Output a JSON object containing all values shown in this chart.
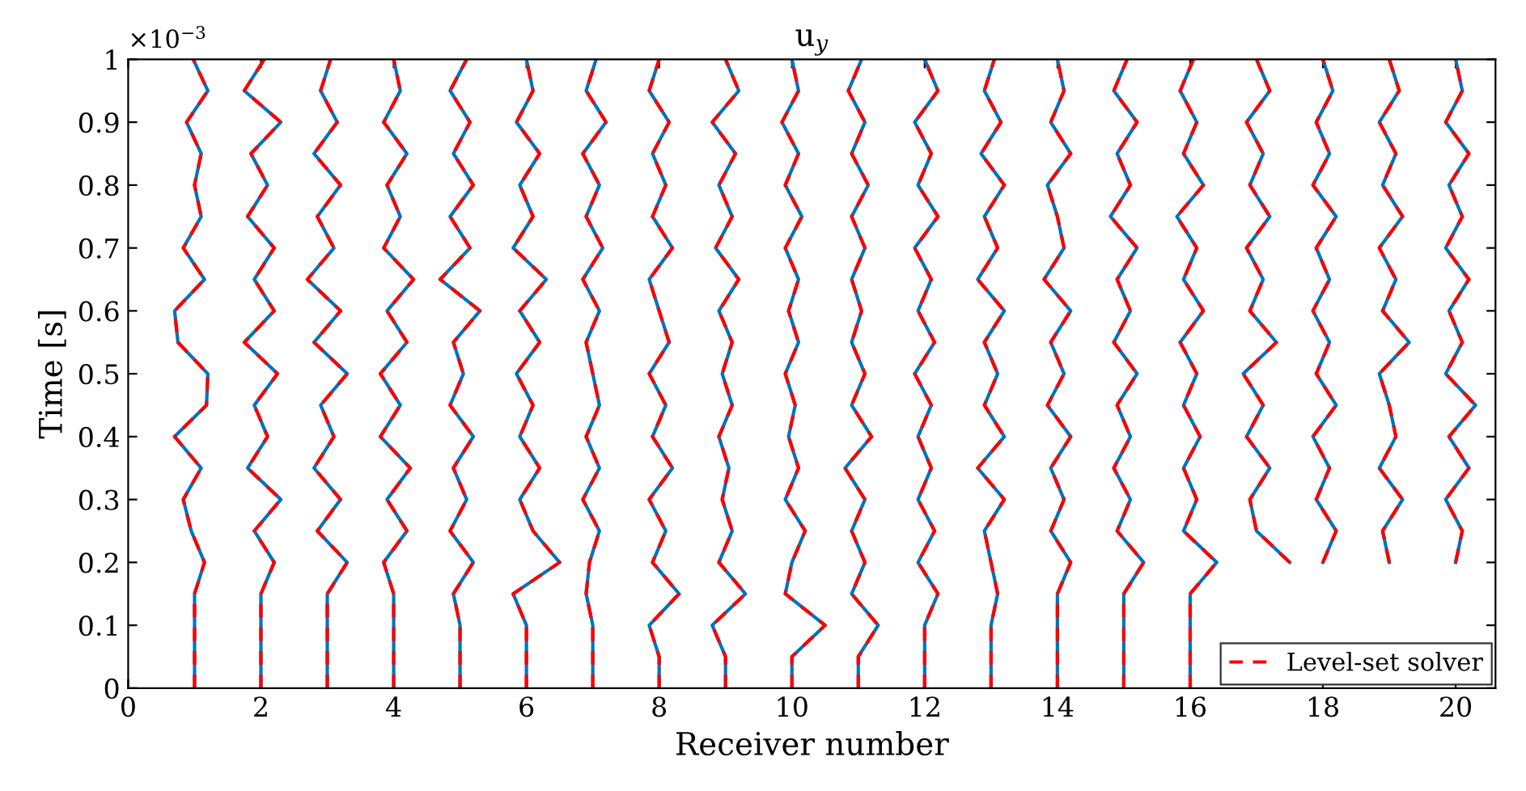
{
  "chart_data": {
    "type": "line",
    "title": "u$_{y}$",
    "xlabel": "Receiver number",
    "ylabel": "Time [s]",
    "annotations": [
      "×10$^{−3}$"
    ],
    "xlim": [
      0,
      20.6
    ],
    "ylim": [
      0,
      1
    ],
    "xticks": [
      0,
      2,
      4,
      6,
      8,
      10,
      12,
      14,
      16,
      18,
      20
    ],
    "yticks": [
      0,
      0.1,
      0.2,
      0.3,
      0.4,
      0.5,
      0.6,
      0.7,
      0.8,
      0.9,
      1
    ],
    "grid": false,
    "legend": "bottom right",
    "series": [
      {
        "color": "#0072bd",
        "line_style": "solid",
        "x": [
          1,
          1,
          1,
          1,
          1.15,
          0.95,
          0.83,
          1.1,
          0.7,
          1.18,
          1.2,
          0.75,
          0.7,
          1.15,
          0.83,
          1.1,
          1.0,
          1.1,
          0.88,
          1.2,
          0.98
        ],
        "values": [
          0,
          0.05,
          0.1,
          0.15,
          0.2,
          0.25,
          0.3,
          0.35,
          0.4,
          0.45,
          0.5,
          0.55,
          0.6,
          0.65,
          0.7,
          0.75,
          0.8,
          0.85,
          0.9,
          0.95,
          1
        ]
      },
      {
        "color": "#0072bd",
        "line_style": "solid",
        "x": [
          2,
          2,
          2,
          2,
          2.2,
          1.9,
          2.3,
          1.8,
          2.1,
          1.9,
          2.25,
          1.75,
          2.2,
          1.9,
          2.2,
          1.8,
          2.1,
          1.85,
          2.3,
          1.75,
          2.05
        ],
        "values": [
          0,
          0.05,
          0.1,
          0.15,
          0.2,
          0.25,
          0.3,
          0.35,
          0.4,
          0.45,
          0.5,
          0.55,
          0.6,
          0.65,
          0.7,
          0.75,
          0.8,
          0.85,
          0.9,
          0.95,
          1
        ]
      },
      {
        "color": "#0072bd",
        "line_style": "solid",
        "x": [
          3,
          3,
          3,
          3,
          3.3,
          2.85,
          3.2,
          2.8,
          3.1,
          2.9,
          3.3,
          2.8,
          3.2,
          2.7,
          3.1,
          2.85,
          3.2,
          2.8,
          3.15,
          2.9,
          3.05
        ],
        "values": [
          0,
          0.05,
          0.1,
          0.15,
          0.2,
          0.25,
          0.3,
          0.35,
          0.4,
          0.45,
          0.5,
          0.55,
          0.6,
          0.65,
          0.7,
          0.75,
          0.8,
          0.85,
          0.9,
          0.95,
          1
        ]
      },
      {
        "color": "#0072bd",
        "line_style": "solid",
        "x": [
          4,
          4,
          4,
          4,
          3.85,
          4.2,
          3.9,
          4.25,
          3.8,
          4.1,
          3.8,
          4.2,
          3.9,
          4.3,
          3.85,
          4.1,
          3.9,
          4.2,
          3.85,
          4.1,
          4.0
        ],
        "values": [
          0,
          0.05,
          0.1,
          0.15,
          0.2,
          0.25,
          0.3,
          0.35,
          0.4,
          0.45,
          0.5,
          0.55,
          0.6,
          0.65,
          0.7,
          0.75,
          0.8,
          0.85,
          0.9,
          0.95,
          1
        ]
      },
      {
        "color": "#0072bd",
        "line_style": "solid",
        "x": [
          5,
          5,
          5,
          4.9,
          5.2,
          4.85,
          5.1,
          4.9,
          5.2,
          4.85,
          5.05,
          4.9,
          5.3,
          4.7,
          5.15,
          4.85,
          5.2,
          4.9,
          5.15,
          4.85,
          5.1
        ],
        "values": [
          0,
          0.05,
          0.1,
          0.15,
          0.2,
          0.25,
          0.3,
          0.35,
          0.4,
          0.45,
          0.5,
          0.55,
          0.6,
          0.65,
          0.7,
          0.75,
          0.8,
          0.85,
          0.9,
          0.95,
          1
        ]
      },
      {
        "color": "#0072bd",
        "line_style": "solid",
        "x": [
          6,
          6,
          6,
          5.8,
          6.5,
          6.1,
          5.9,
          6.2,
          5.9,
          6.1,
          5.85,
          6.2,
          5.9,
          6.3,
          5.8,
          6.1,
          5.9,
          6.2,
          5.85,
          6.1,
          6.0
        ],
        "values": [
          0,
          0.05,
          0.1,
          0.15,
          0.2,
          0.25,
          0.3,
          0.35,
          0.4,
          0.45,
          0.5,
          0.55,
          0.6,
          0.65,
          0.7,
          0.75,
          0.8,
          0.85,
          0.9,
          0.95,
          1
        ]
      },
      {
        "color": "#0072bd",
        "line_style": "solid",
        "x": [
          7,
          7,
          7,
          6.9,
          6.95,
          7.1,
          6.85,
          7.1,
          6.9,
          7.1,
          7.0,
          6.9,
          7.1,
          6.85,
          7.15,
          6.9,
          7.1,
          6.85,
          7.2,
          6.9,
          7.05
        ],
        "values": [
          0,
          0.05,
          0.1,
          0.15,
          0.2,
          0.25,
          0.3,
          0.35,
          0.4,
          0.45,
          0.5,
          0.55,
          0.6,
          0.65,
          0.7,
          0.75,
          0.8,
          0.85,
          0.9,
          0.95,
          1
        ]
      },
      {
        "color": "#0072bd",
        "line_style": "solid",
        "x": [
          8,
          8,
          7.85,
          8.3,
          7.9,
          8.1,
          7.85,
          8.2,
          7.9,
          8.1,
          7.85,
          8.15,
          8.0,
          7.85,
          8.2,
          7.9,
          8.1,
          7.9,
          8.15,
          7.85,
          8.0
        ],
        "values": [
          0,
          0.05,
          0.1,
          0.15,
          0.2,
          0.25,
          0.3,
          0.35,
          0.4,
          0.45,
          0.5,
          0.55,
          0.6,
          0.65,
          0.7,
          0.75,
          0.8,
          0.85,
          0.9,
          0.95,
          1
        ]
      },
      {
        "color": "#0072bd",
        "line_style": "solid",
        "x": [
          9,
          9,
          8.8,
          9.3,
          8.9,
          9.1,
          8.95,
          9.05,
          8.9,
          9.1,
          8.95,
          9.1,
          8.9,
          9.2,
          8.85,
          9.1,
          8.9,
          9.15,
          8.8,
          9.2,
          9.0
        ],
        "values": [
          0,
          0.05,
          0.1,
          0.15,
          0.2,
          0.25,
          0.3,
          0.35,
          0.4,
          0.45,
          0.5,
          0.55,
          0.6,
          0.65,
          0.7,
          0.75,
          0.8,
          0.85,
          0.9,
          0.95,
          1
        ]
      },
      {
        "color": "#0072bd",
        "line_style": "solid",
        "x": [
          10,
          10,
          10.5,
          9.9,
          10.0,
          10.2,
          9.9,
          10.1,
          9.95,
          10.05,
          9.9,
          10.1,
          9.95,
          10.1,
          9.9,
          10.15,
          9.9,
          10.1,
          9.85,
          10.1,
          10.0
        ],
        "values": [
          0,
          0.05,
          0.1,
          0.15,
          0.2,
          0.25,
          0.3,
          0.35,
          0.4,
          0.45,
          0.5,
          0.55,
          0.6,
          0.65,
          0.7,
          0.75,
          0.8,
          0.85,
          0.9,
          0.95,
          1
        ]
      },
      {
        "color": "#0072bd",
        "line_style": "solid",
        "x": [
          11,
          11,
          11.3,
          10.9,
          11.1,
          10.9,
          11.1,
          10.8,
          11.2,
          10.9,
          11.1,
          10.9,
          11.05,
          10.9,
          11.1,
          10.9,
          11.15,
          10.9,
          11.1,
          10.85,
          11.05
        ],
        "values": [
          0,
          0.05,
          0.1,
          0.15,
          0.2,
          0.25,
          0.3,
          0.35,
          0.4,
          0.45,
          0.5,
          0.55,
          0.6,
          0.65,
          0.7,
          0.75,
          0.8,
          0.85,
          0.9,
          0.95,
          1
        ]
      },
      {
        "color": "#0072bd",
        "line_style": "solid",
        "x": [
          12,
          12,
          12,
          12.2,
          11.9,
          12.15,
          11.9,
          12.1,
          11.9,
          12.1,
          11.85,
          12.15,
          11.9,
          12.1,
          11.85,
          12.2,
          11.9,
          12.1,
          11.85,
          12.2,
          12.0
        ],
        "values": [
          0,
          0.05,
          0.1,
          0.15,
          0.2,
          0.25,
          0.3,
          0.35,
          0.4,
          0.45,
          0.5,
          0.55,
          0.6,
          0.65,
          0.7,
          0.75,
          0.8,
          0.85,
          0.9,
          0.95,
          1
        ]
      },
      {
        "color": "#0072bd",
        "line_style": "solid",
        "x": [
          13,
          13,
          13,
          13.1,
          13.0,
          12.9,
          13.2,
          12.8,
          13.2,
          12.9,
          13.1,
          12.9,
          13.2,
          12.8,
          13.1,
          12.9,
          13.2,
          12.85,
          13.15,
          12.9,
          13.05
        ],
        "values": [
          0,
          0.05,
          0.1,
          0.15,
          0.2,
          0.25,
          0.3,
          0.35,
          0.4,
          0.45,
          0.5,
          0.55,
          0.6,
          0.65,
          0.7,
          0.75,
          0.8,
          0.85,
          0.9,
          0.95,
          1
        ]
      },
      {
        "color": "#0072bd",
        "line_style": "solid",
        "x": [
          14,
          14,
          14,
          14,
          14.2,
          13.9,
          14.1,
          13.9,
          14.2,
          13.85,
          14.1,
          13.9,
          14.2,
          13.8,
          14.1,
          14.0,
          13.85,
          14.2,
          13.9,
          14.1,
          14.0
        ],
        "values": [
          0,
          0.05,
          0.1,
          0.15,
          0.2,
          0.25,
          0.3,
          0.35,
          0.4,
          0.45,
          0.5,
          0.55,
          0.6,
          0.65,
          0.7,
          0.75,
          0.8,
          0.85,
          0.9,
          0.95,
          1
        ]
      },
      {
        "color": "#0072bd",
        "line_style": "solid",
        "x": [
          15,
          15,
          15,
          15,
          15.3,
          14.9,
          15.1,
          14.85,
          15.1,
          14.9,
          15.2,
          14.85,
          15.1,
          14.9,
          15.2,
          14.8,
          15.1,
          14.9,
          15.2,
          14.85,
          15.05
        ],
        "values": [
          0,
          0.05,
          0.1,
          0.15,
          0.2,
          0.25,
          0.3,
          0.35,
          0.4,
          0.45,
          0.5,
          0.55,
          0.6,
          0.65,
          0.7,
          0.75,
          0.8,
          0.85,
          0.9,
          0.95,
          1
        ]
      },
      {
        "color": "#0072bd",
        "line_style": "solid",
        "x": [
          16,
          16,
          16,
          16,
          16.4,
          15.9,
          16.1,
          15.9,
          16.15,
          15.9,
          16.1,
          15.85,
          16.2,
          15.9,
          16.1,
          15.8,
          16.2,
          15.9,
          16.1,
          15.85,
          16.05
        ],
        "values": [
          0,
          0.05,
          0.1,
          0.15,
          0.2,
          0.25,
          0.3,
          0.35,
          0.4,
          0.45,
          0.5,
          0.55,
          0.6,
          0.65,
          0.7,
          0.75,
          0.8,
          0.85,
          0.9,
          0.95,
          1
        ]
      },
      {
        "color": "#0072bd",
        "line_style": "solid",
        "x": [
          17.5,
          17.0,
          16.9,
          17.2,
          16.85,
          17.1,
          16.8,
          17.3,
          16.9,
          17.1,
          16.85,
          17.2,
          16.9,
          17.1,
          16.85,
          17.2,
          17.0
        ],
        "values": [
          0.2,
          0.25,
          0.3,
          0.35,
          0.4,
          0.45,
          0.5,
          0.55,
          0.6,
          0.65,
          0.7,
          0.75,
          0.8,
          0.85,
          0.9,
          0.95,
          1
        ]
      },
      {
        "color": "#0072bd",
        "line_style": "solid",
        "x": [
          18.0,
          18.2,
          17.9,
          18.1,
          17.85,
          18.2,
          17.9,
          18.1,
          17.85,
          18.1,
          17.9,
          18.2,
          17.85,
          18.1,
          17.9,
          18.15,
          18.0
        ],
        "values": [
          0.2,
          0.25,
          0.3,
          0.35,
          0.4,
          0.45,
          0.5,
          0.55,
          0.6,
          0.65,
          0.7,
          0.75,
          0.8,
          0.85,
          0.9,
          0.95,
          1
        ]
      },
      {
        "color": "#0072bd",
        "line_style": "solid",
        "x": [
          19.0,
          18.9,
          19.2,
          18.85,
          19.1,
          19.0,
          18.85,
          19.3,
          18.9,
          19.1,
          18.85,
          19.2,
          18.9,
          19.1,
          18.85,
          19.15,
          19.0
        ],
        "values": [
          0.2,
          0.25,
          0.3,
          0.35,
          0.4,
          0.45,
          0.5,
          0.55,
          0.6,
          0.65,
          0.7,
          0.75,
          0.8,
          0.85,
          0.9,
          0.95,
          1
        ]
      },
      {
        "color": "#0072bd",
        "line_style": "solid",
        "x": [
          20.0,
          20.1,
          19.85,
          20.2,
          19.9,
          20.3,
          19.85,
          20.1,
          19.9,
          20.2,
          19.85,
          20.1,
          19.9,
          20.2,
          19.85,
          20.1,
          20.0
        ],
        "values": [
          0.2,
          0.25,
          0.3,
          0.35,
          0.4,
          0.45,
          0.5,
          0.55,
          0.6,
          0.65,
          0.7,
          0.75,
          0.8,
          0.85,
          0.9,
          0.95,
          1
        ]
      },
      {
        "name": "Level-set solver",
        "color": "#ff0000",
        "line_style": "dashed",
        "x": [
          1,
          1,
          1,
          1,
          1.15,
          0.95,
          0.83,
          1.1,
          0.7,
          1.18,
          1.2,
          0.75,
          0.7,
          1.15,
          0.83,
          1.1,
          1.0,
          1.1,
          0.88,
          1.2,
          0.98
        ],
        "values": [
          0,
          0.05,
          0.1,
          0.15,
          0.2,
          0.25,
          0.3,
          0.35,
          0.4,
          0.45,
          0.5,
          0.55,
          0.6,
          0.65,
          0.7,
          0.75,
          0.8,
          0.85,
          0.9,
          0.95,
          1
        ]
      },
      {
        "color": "#ff0000",
        "line_style": "dashed",
        "x": [
          2,
          2,
          2,
          2,
          2.2,
          1.9,
          2.3,
          1.8,
          2.1,
          1.9,
          2.25,
          1.75,
          2.2,
          1.9,
          2.2,
          1.8,
          2.1,
          1.85,
          2.3,
          1.75,
          2.05
        ],
        "values": [
          0,
          0.05,
          0.1,
          0.15,
          0.2,
          0.25,
          0.3,
          0.35,
          0.4,
          0.45,
          0.5,
          0.55,
          0.6,
          0.65,
          0.7,
          0.75,
          0.8,
          0.85,
          0.9,
          0.95,
          1
        ]
      },
      {
        "color": "#ff0000",
        "line_style": "dashed",
        "x": [
          3,
          3,
          3,
          3,
          3.3,
          2.85,
          3.2,
          2.8,
          3.1,
          2.9,
          3.3,
          2.8,
          3.2,
          2.7,
          3.1,
          2.85,
          3.2,
          2.8,
          3.15,
          2.9,
          3.05
        ],
        "values": [
          0,
          0.05,
          0.1,
          0.15,
          0.2,
          0.25,
          0.3,
          0.35,
          0.4,
          0.45,
          0.5,
          0.55,
          0.6,
          0.65,
          0.7,
          0.75,
          0.8,
          0.85,
          0.9,
          0.95,
          1
        ]
      },
      {
        "color": "#ff0000",
        "line_style": "dashed",
        "x": [
          4,
          4,
          4,
          4,
          3.85,
          4.2,
          3.9,
          4.25,
          3.8,
          4.1,
          3.8,
          4.2,
          3.9,
          4.3,
          3.85,
          4.1,
          3.9,
          4.2,
          3.85,
          4.1,
          4.0
        ],
        "values": [
          0,
          0.05,
          0.1,
          0.15,
          0.2,
          0.25,
          0.3,
          0.35,
          0.4,
          0.45,
          0.5,
          0.55,
          0.6,
          0.65,
          0.7,
          0.75,
          0.8,
          0.85,
          0.9,
          0.95,
          1
        ]
      },
      {
        "color": "#ff0000",
        "line_style": "dashed",
        "x": [
          5,
          5,
          5,
          4.9,
          5.2,
          4.85,
          5.1,
          4.9,
          5.2,
          4.85,
          5.05,
          4.9,
          5.3,
          4.7,
          5.15,
          4.85,
          5.2,
          4.9,
          5.15,
          4.85,
          5.1
        ],
        "values": [
          0,
          0.05,
          0.1,
          0.15,
          0.2,
          0.25,
          0.3,
          0.35,
          0.4,
          0.45,
          0.5,
          0.55,
          0.6,
          0.65,
          0.7,
          0.75,
          0.8,
          0.85,
          0.9,
          0.95,
          1
        ]
      },
      {
        "color": "#ff0000",
        "line_style": "dashed",
        "x": [
          6,
          6,
          6,
          5.8,
          6.5,
          6.1,
          5.9,
          6.2,
          5.9,
          6.1,
          5.85,
          6.2,
          5.9,
          6.3,
          5.8,
          6.1,
          5.9,
          6.2,
          5.85,
          6.1,
          6.0
        ],
        "values": [
          0,
          0.05,
          0.1,
          0.15,
          0.2,
          0.25,
          0.3,
          0.35,
          0.4,
          0.45,
          0.5,
          0.55,
          0.6,
          0.65,
          0.7,
          0.75,
          0.8,
          0.85,
          0.9,
          0.95,
          1
        ]
      },
      {
        "color": "#ff0000",
        "line_style": "dashed",
        "x": [
          7,
          7,
          7,
          6.9,
          6.95,
          7.1,
          6.85,
          7.1,
          6.9,
          7.1,
          7.0,
          6.9,
          7.1,
          6.85,
          7.15,
          6.9,
          7.1,
          6.85,
          7.2,
          6.9,
          7.05
        ],
        "values": [
          0,
          0.05,
          0.1,
          0.15,
          0.2,
          0.25,
          0.3,
          0.35,
          0.4,
          0.45,
          0.5,
          0.55,
          0.6,
          0.65,
          0.7,
          0.75,
          0.8,
          0.85,
          0.9,
          0.95,
          1
        ]
      },
      {
        "color": "#ff0000",
        "line_style": "dashed",
        "x": [
          8,
          8,
          7.85,
          8.3,
          7.9,
          8.1,
          7.85,
          8.2,
          7.9,
          8.1,
          7.85,
          8.15,
          8.0,
          7.85,
          8.2,
          7.9,
          8.1,
          7.9,
          8.15,
          7.85,
          8.0
        ],
        "values": [
          0,
          0.05,
          0.1,
          0.15,
          0.2,
          0.25,
          0.3,
          0.35,
          0.4,
          0.45,
          0.5,
          0.55,
          0.6,
          0.65,
          0.7,
          0.75,
          0.8,
          0.85,
          0.9,
          0.95,
          1
        ]
      },
      {
        "color": "#ff0000",
        "line_style": "dashed",
        "x": [
          9,
          9,
          8.8,
          9.3,
          8.9,
          9.1,
          8.95,
          9.05,
          8.9,
          9.1,
          8.95,
          9.1,
          8.9,
          9.2,
          8.85,
          9.1,
          8.9,
          9.15,
          8.8,
          9.2,
          9.0
        ],
        "values": [
          0,
          0.05,
          0.1,
          0.15,
          0.2,
          0.25,
          0.3,
          0.35,
          0.4,
          0.45,
          0.5,
          0.55,
          0.6,
          0.65,
          0.7,
          0.75,
          0.8,
          0.85,
          0.9,
          0.95,
          1
        ]
      },
      {
        "color": "#ff0000",
        "line_style": "dashed",
        "x": [
          10,
          10,
          10.5,
          9.9,
          10.0,
          10.2,
          9.9,
          10.1,
          9.95,
          10.05,
          9.9,
          10.1,
          9.95,
          10.1,
          9.9,
          10.15,
          9.9,
          10.1,
          9.85,
          10.1,
          10.0
        ],
        "values": [
          0,
          0.05,
          0.1,
          0.15,
          0.2,
          0.25,
          0.3,
          0.35,
          0.4,
          0.45,
          0.5,
          0.55,
          0.6,
          0.65,
          0.7,
          0.75,
          0.8,
          0.85,
          0.9,
          0.95,
          1
        ]
      },
      {
        "color": "#ff0000",
        "line_style": "dashed",
        "x": [
          11,
          11,
          11.3,
          10.9,
          11.1,
          10.9,
          11.1,
          10.8,
          11.2,
          10.9,
          11.1,
          10.9,
          11.05,
          10.9,
          11.1,
          10.9,
          11.15,
          10.9,
          11.1,
          10.85,
          11.05
        ],
        "values": [
          0,
          0.05,
          0.1,
          0.15,
          0.2,
          0.25,
          0.3,
          0.35,
          0.4,
          0.45,
          0.5,
          0.55,
          0.6,
          0.65,
          0.7,
          0.75,
          0.8,
          0.85,
          0.9,
          0.95,
          1
        ]
      },
      {
        "color": "#ff0000",
        "line_style": "dashed",
        "x": [
          12,
          12,
          12,
          12.2,
          11.9,
          12.15,
          11.9,
          12.1,
          11.9,
          12.1,
          11.85,
          12.15,
          11.9,
          12.1,
          11.85,
          12.2,
          11.9,
          12.1,
          11.85,
          12.2,
          12.0
        ],
        "values": [
          0,
          0.05,
          0.1,
          0.15,
          0.2,
          0.25,
          0.3,
          0.35,
          0.4,
          0.45,
          0.5,
          0.55,
          0.6,
          0.65,
          0.7,
          0.75,
          0.8,
          0.85,
          0.9,
          0.95,
          1
        ]
      },
      {
        "color": "#ff0000",
        "line_style": "dashed",
        "x": [
          13,
          13,
          13,
          13.1,
          13.0,
          12.9,
          13.2,
          12.8,
          13.2,
          12.9,
          13.1,
          12.9,
          13.2,
          12.8,
          13.1,
          12.9,
          13.2,
          12.85,
          13.15,
          12.9,
          13.05
        ],
        "values": [
          0,
          0.05,
          0.1,
          0.15,
          0.2,
          0.25,
          0.3,
          0.35,
          0.4,
          0.45,
          0.5,
          0.55,
          0.6,
          0.65,
          0.7,
          0.75,
          0.8,
          0.85,
          0.9,
          0.95,
          1
        ]
      },
      {
        "color": "#ff0000",
        "line_style": "dashed",
        "x": [
          14,
          14,
          14,
          14,
          14.2,
          13.9,
          14.1,
          13.9,
          14.2,
          13.85,
          14.1,
          13.9,
          14.2,
          13.8,
          14.1,
          14.0,
          13.85,
          14.2,
          13.9,
          14.1,
          14.0
        ],
        "values": [
          0,
          0.05,
          0.1,
          0.15,
          0.2,
          0.25,
          0.3,
          0.35,
          0.4,
          0.45,
          0.5,
          0.55,
          0.6,
          0.65,
          0.7,
          0.75,
          0.8,
          0.85,
          0.9,
          0.95,
          1
        ]
      },
      {
        "color": "#ff0000",
        "line_style": "dashed",
        "x": [
          15,
          15,
          15,
          15,
          15.3,
          14.9,
          15.1,
          14.85,
          15.1,
          14.9,
          15.2,
          14.85,
          15.1,
          14.9,
          15.2,
          14.8,
          15.1,
          14.9,
          15.2,
          14.85,
          15.05
        ],
        "values": [
          0,
          0.05,
          0.1,
          0.15,
          0.2,
          0.25,
          0.3,
          0.35,
          0.4,
          0.45,
          0.5,
          0.55,
          0.6,
          0.65,
          0.7,
          0.75,
          0.8,
          0.85,
          0.9,
          0.95,
          1
        ]
      },
      {
        "color": "#ff0000",
        "line_style": "dashed",
        "x": [
          16,
          16,
          16,
          16,
          16.4,
          15.9,
          16.1,
          15.9,
          16.15,
          15.9,
          16.1,
          15.85,
          16.2,
          15.9,
          16.1,
          15.8,
          16.2,
          15.9,
          16.1,
          15.85,
          16.05
        ],
        "values": [
          0,
          0.05,
          0.1,
          0.15,
          0.2,
          0.25,
          0.3,
          0.35,
          0.4,
          0.45,
          0.5,
          0.55,
          0.6,
          0.65,
          0.7,
          0.75,
          0.8,
          0.85,
          0.9,
          0.95,
          1
        ]
      },
      {
        "color": "#ff0000",
        "line_style": "dashed",
        "x": [
          17.5,
          17.0,
          16.9,
          17.2,
          16.85,
          17.1,
          16.8,
          17.3,
          16.9,
          17.1,
          16.85,
          17.2,
          16.9,
          17.1,
          16.85,
          17.2,
          17.0
        ],
        "values": [
          0.2,
          0.25,
          0.3,
          0.35,
          0.4,
          0.45,
          0.5,
          0.55,
          0.6,
          0.65,
          0.7,
          0.75,
          0.8,
          0.85,
          0.9,
          0.95,
          1
        ]
      },
      {
        "color": "#ff0000",
        "line_style": "dashed",
        "x": [
          18.0,
          18.2,
          17.9,
          18.1,
          17.85,
          18.2,
          17.9,
          18.1,
          17.85,
          18.1,
          17.9,
          18.2,
          17.85,
          18.1,
          17.9,
          18.15,
          18.0
        ],
        "values": [
          0.2,
          0.25,
          0.3,
          0.35,
          0.4,
          0.45,
          0.5,
          0.55,
          0.6,
          0.65,
          0.7,
          0.75,
          0.8,
          0.85,
          0.9,
          0.95,
          1
        ]
      },
      {
        "color": "#ff0000",
        "line_style": "dashed",
        "x": [
          19.0,
          18.9,
          19.2,
          18.85,
          19.1,
          19.0,
          18.85,
          19.3,
          18.9,
          19.1,
          18.85,
          19.2,
          18.9,
          19.1,
          18.85,
          19.15,
          19.0
        ],
        "values": [
          0.2,
          0.25,
          0.3,
          0.35,
          0.4,
          0.45,
          0.5,
          0.55,
          0.6,
          0.65,
          0.7,
          0.75,
          0.8,
          0.85,
          0.9,
          0.95,
          1
        ]
      },
      {
        "color": "#ff0000",
        "line_style": "dashed",
        "x": [
          20.0,
          20.1,
          19.85,
          20.2,
          19.9,
          20.3,
          19.85,
          20.1,
          19.9,
          20.2,
          19.85,
          20.1,
          19.9,
          20.2,
          19.85,
          20.1,
          20.0
        ],
        "values": [
          0.2,
          0.25,
          0.3,
          0.35,
          0.4,
          0.45,
          0.5,
          0.55,
          0.6,
          0.65,
          0.7,
          0.75,
          0.8,
          0.85,
          0.9,
          0.95,
          1
        ]
      }
    ]
  }
}
